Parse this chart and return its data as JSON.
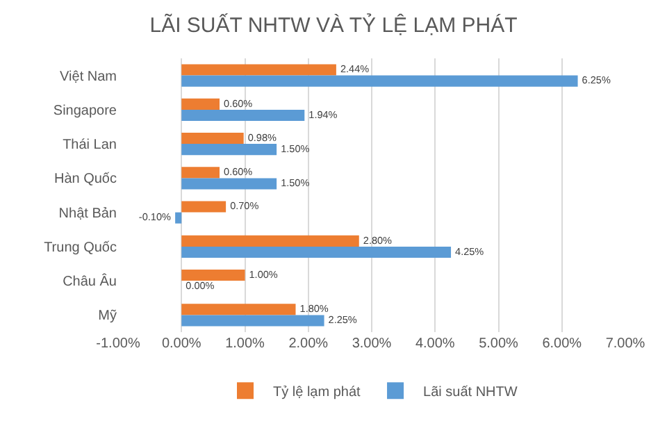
{
  "chart_data": {
    "type": "bar",
    "title": "LÃI SUẤT NHTW VÀ TỶ LỆ LẠM PHÁT",
    "orientation": "horizontal",
    "categories": [
      "Việt Nam",
      "Singapore",
      "Thái Lan",
      "Hàn Quốc",
      "Nhật Bản",
      "Trung Quốc",
      "Châu Âu",
      "Mỹ"
    ],
    "series": [
      {
        "name": "Tỷ lệ lạm phát",
        "color": "#ed7d31",
        "values": [
          2.44,
          0.6,
          0.98,
          0.6,
          0.7,
          2.8,
          1.0,
          1.8
        ],
        "value_labels": [
          "2.44%",
          "0.60%",
          "0.98%",
          "0.60%",
          "0.70%",
          "2.80%",
          "1.00%",
          "1.80%"
        ]
      },
      {
        "name": "Lãi suất NHTW",
        "color": "#5b9bd5",
        "values": [
          6.25,
          1.94,
          1.5,
          1.5,
          -0.1,
          4.25,
          0.0,
          2.25
        ],
        "value_labels": [
          "6.25%",
          "1.94%",
          "1.50%",
          "1.50%",
          "-0.10%",
          "4.25%",
          "0.00%",
          "2.25%"
        ]
      }
    ],
    "xlim": [
      -1,
      7
    ],
    "xticks": [
      {
        "value": -1,
        "label": "-1.00%"
      },
      {
        "value": 0,
        "label": "0.00%"
      },
      {
        "value": 1,
        "label": "1.00%"
      },
      {
        "value": 2,
        "label": "2.00%"
      },
      {
        "value": 3,
        "label": "3.00%"
      },
      {
        "value": 4,
        "label": "4.00%"
      },
      {
        "value": 5,
        "label": "5.00%"
      },
      {
        "value": 6,
        "label": "6.00%"
      },
      {
        "value": 7,
        "label": "7.00%"
      }
    ],
    "grid": "x",
    "legend": "bottom"
  }
}
